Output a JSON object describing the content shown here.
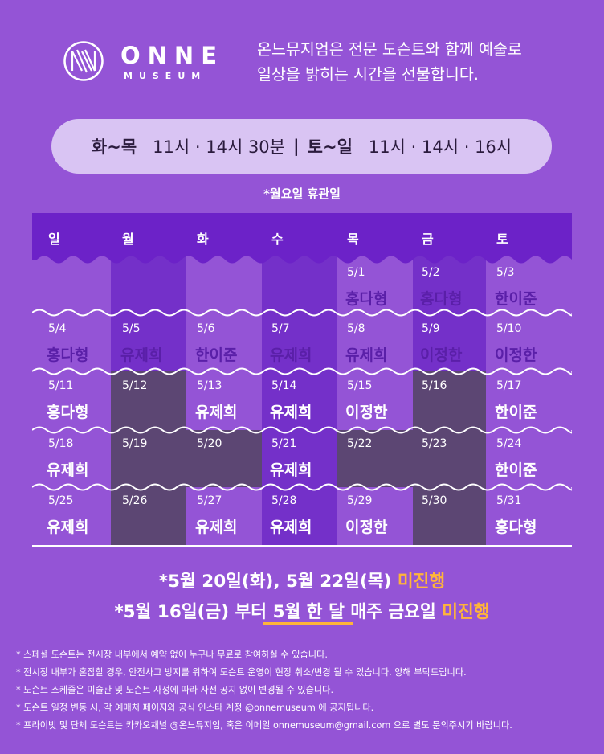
{
  "brand": {
    "name": "ONNE",
    "sub": "MUSEUM"
  },
  "intro": {
    "line1": "온느뮤지엄은 전문 도슨트와 함께 예술로",
    "line2": "일상을 밝히는 시간을 선물합니다."
  },
  "hours": {
    "weekday_label": "화~목",
    "weekday_times": "11시 · 14시 30분",
    "separator": "|",
    "weekend_label": "토~일",
    "weekend_times": "11시 · 14시 · 16시"
  },
  "closed_note": "*월요일 휴관일",
  "calendar": {
    "days": [
      "일",
      "월",
      "화",
      "수",
      "목",
      "금",
      "토"
    ],
    "weeks": [
      [
        {
          "date": "",
          "name": ""
        },
        {
          "date": "",
          "name": ""
        },
        {
          "date": "",
          "name": ""
        },
        {
          "date": "",
          "name": ""
        },
        {
          "date": "5/1",
          "name": "홍다형"
        },
        {
          "date": "5/2",
          "name": "홍다형"
        },
        {
          "date": "5/3",
          "name": "한이준"
        }
      ],
      [
        {
          "date": "5/4",
          "name": "홍다형"
        },
        {
          "date": "5/5",
          "name": "유제희"
        },
        {
          "date": "5/6",
          "name": "한이준"
        },
        {
          "date": "5/7",
          "name": "유제희"
        },
        {
          "date": "5/8",
          "name": "유제희"
        },
        {
          "date": "5/9",
          "name": "이정한"
        },
        {
          "date": "5/10",
          "name": "이정한"
        }
      ],
      [
        {
          "date": "5/11",
          "name": "홍다형"
        },
        {
          "date": "5/12",
          "name": ""
        },
        {
          "date": "5/13",
          "name": "유제희"
        },
        {
          "date": "5/14",
          "name": "유제희"
        },
        {
          "date": "5/15",
          "name": "이정한"
        },
        {
          "date": "5/16",
          "name": ""
        },
        {
          "date": "5/17",
          "name": "한이준"
        }
      ],
      [
        {
          "date": "5/18",
          "name": "유제희"
        },
        {
          "date": "5/19",
          "name": ""
        },
        {
          "date": "5/20",
          "name": ""
        },
        {
          "date": "5/21",
          "name": "유제희"
        },
        {
          "date": "5/22",
          "name": ""
        },
        {
          "date": "5/23",
          "name": ""
        },
        {
          "date": "5/24",
          "name": "한이준"
        }
      ],
      [
        {
          "date": "5/25",
          "name": "유제희"
        },
        {
          "date": "5/26",
          "name": ""
        },
        {
          "date": "5/27",
          "name": "유제희"
        },
        {
          "date": "5/28",
          "name": "유제희"
        },
        {
          "date": "5/29",
          "name": "이정한"
        },
        {
          "date": "5/30",
          "name": ""
        },
        {
          "date": "5/31",
          "name": "홍다형"
        }
      ]
    ]
  },
  "notice1": {
    "text": "*5월 20일(화), 5월 22일(목) ",
    "highlight": "미진행"
  },
  "notice2": {
    "part1": "*5월 16일(금) 부터 ",
    "underlined": "5월 한 달",
    "part2": " 매주 금요일 ",
    "highlight": "미진행"
  },
  "footnotes": [
    "* 스페셜 도슨트는 전시장 내부에서 예약 없이 누구나 무료로 참여하실 수 있습니다.",
    "* 전시장 내부가 혼잡할 경우, 안전사고 방지를 위하여 도슨트 운영이 현장 취소/변경 될 수 있습니다. 양해 부탁드립니다.",
    "* 도슨트 스케줄은 미술관 및 도슨트 사정에 따라 사전 공지 없이 변경될 수 있습니다.",
    "* 도슨트 일정 변동 시, 각 예매처 페이지와 공식 인스타 계정 @onnemuseum 에 공지됩니다.",
    "* 프라이빗 및 단체 도슨트는 카카오채널 @온느뮤지엄, 혹은 이메일 onnemuseum@gmail.com 으로 별도 문의주시기 바랍니다."
  ],
  "colors": {
    "background": "#9454d6",
    "header_band": "#6c22c8",
    "dark_column": "#5a4570",
    "accent": "#ffb43a"
  }
}
